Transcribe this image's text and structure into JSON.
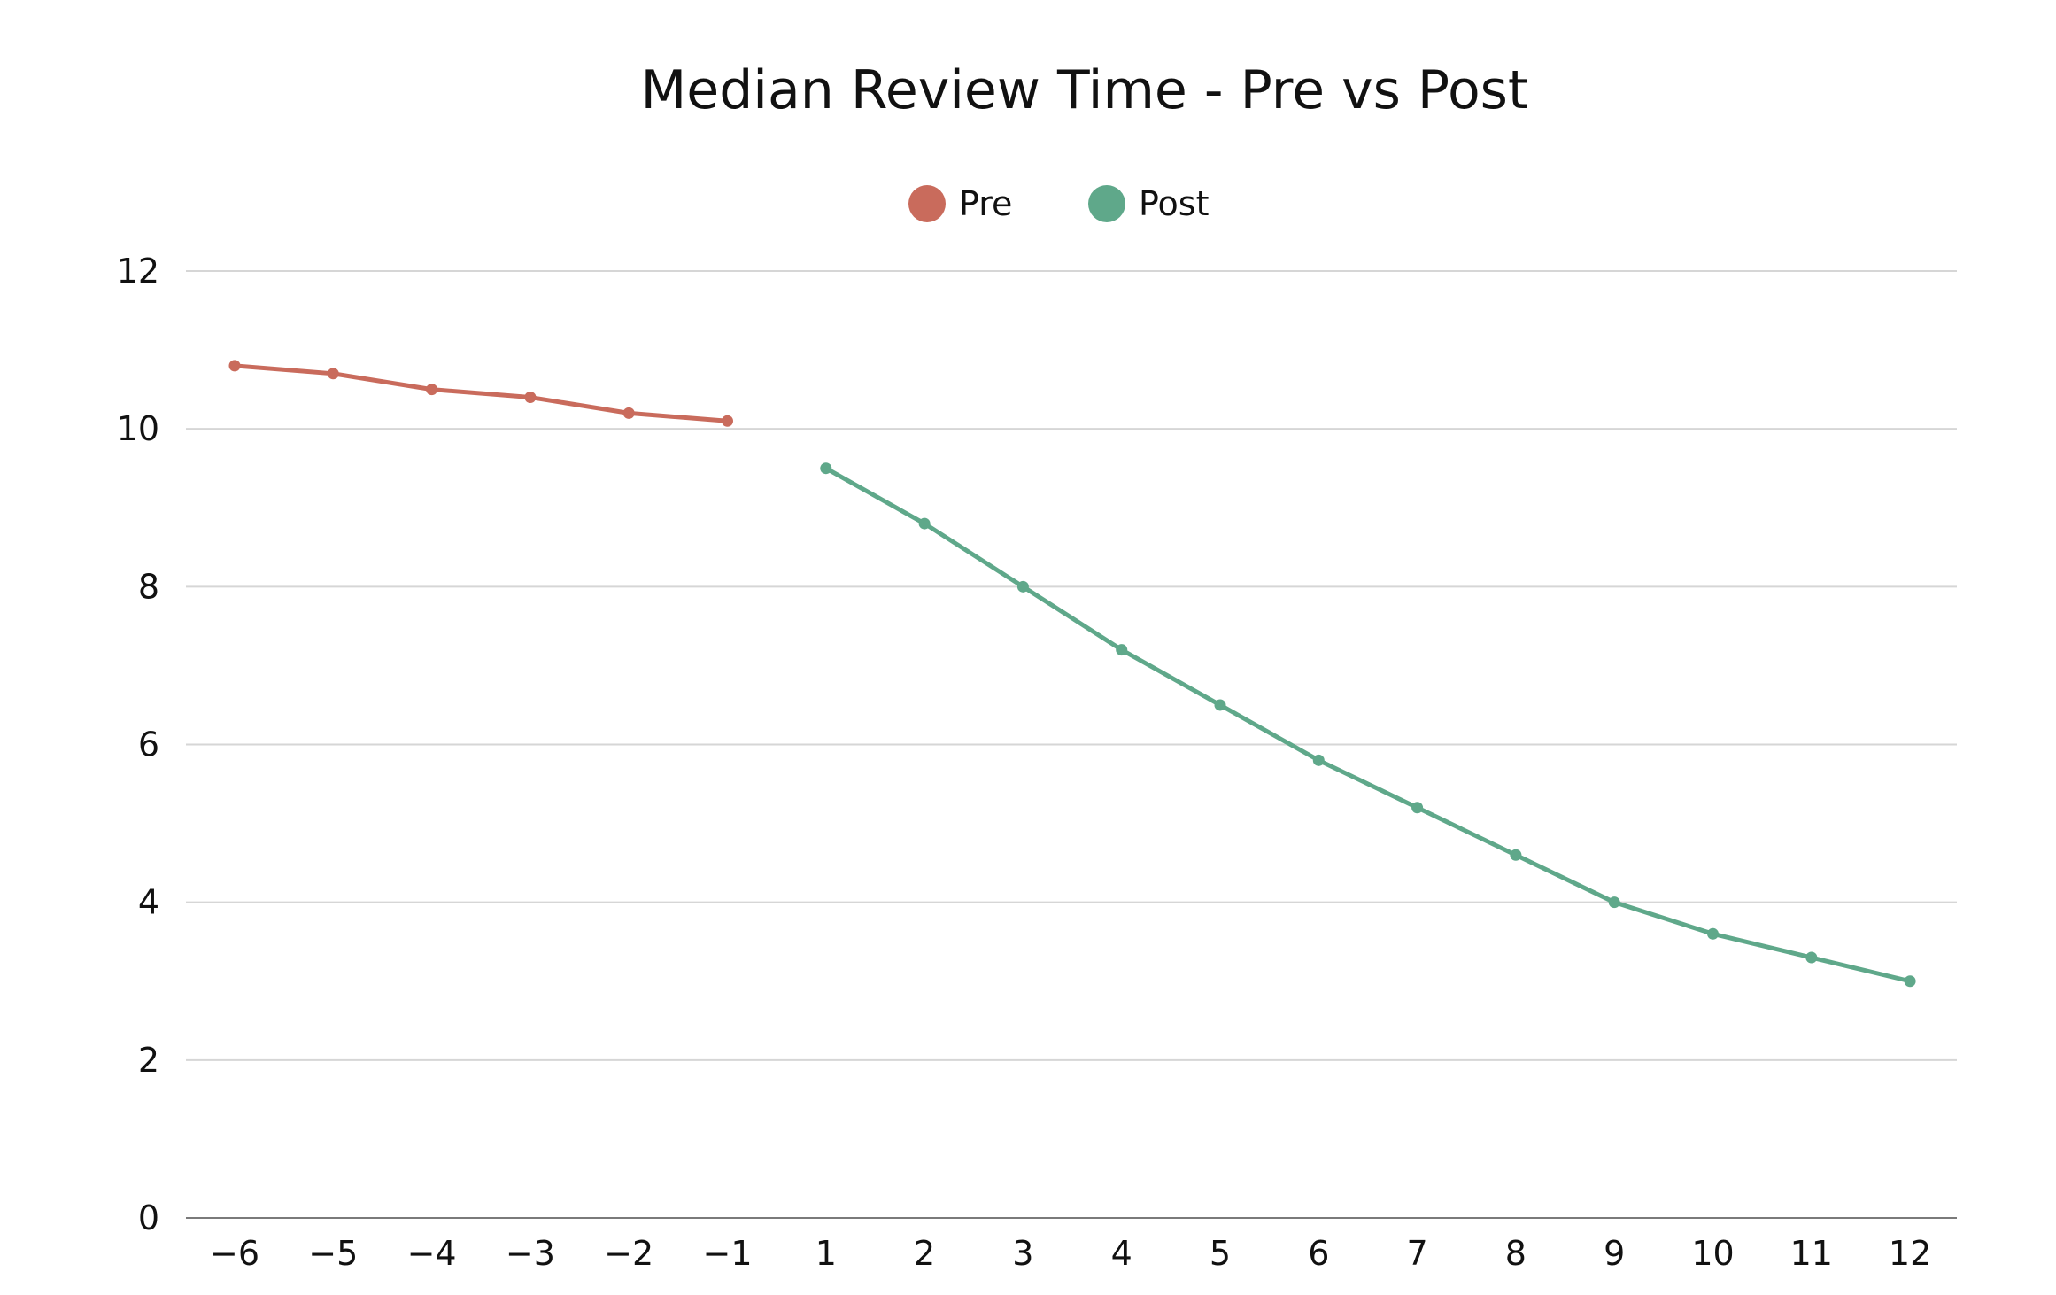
{
  "chart_data": {
    "type": "line",
    "title": "Median Review Time - Pre vs Post",
    "xlabel": "",
    "ylabel": "",
    "x": [
      -6,
      -5,
      -4,
      -3,
      -2,
      -1,
      1,
      2,
      3,
      4,
      5,
      6,
      7,
      8,
      9,
      10,
      11,
      12
    ],
    "x_tick_labels": [
      "−6",
      "−5",
      "−4",
      "−3",
      "−2",
      "−1",
      "1",
      "2",
      "3",
      "4",
      "5",
      "6",
      "7",
      "8",
      "9",
      "10",
      "11",
      "12"
    ],
    "y_ticks": [
      0,
      2,
      4,
      6,
      8,
      10,
      12
    ],
    "ylim": [
      0,
      12
    ],
    "grid": true,
    "legend_position": "top-center",
    "series": [
      {
        "name": "Pre",
        "color": "#c96b5c",
        "x": [
          -6,
          -5,
          -4,
          -3,
          -2,
          -1
        ],
        "values": [
          10.8,
          10.7,
          10.5,
          10.4,
          10.2,
          10.1
        ]
      },
      {
        "name": "Post",
        "color": "#5fa88a",
        "x": [
          1,
          2,
          3,
          4,
          5,
          6,
          7,
          8,
          9,
          10,
          11,
          12
        ],
        "values": [
          9.5,
          8.8,
          8.0,
          7.2,
          6.5,
          5.8,
          5.2,
          4.6,
          4.0,
          3.6,
          3.3,
          3.0
        ]
      }
    ]
  }
}
